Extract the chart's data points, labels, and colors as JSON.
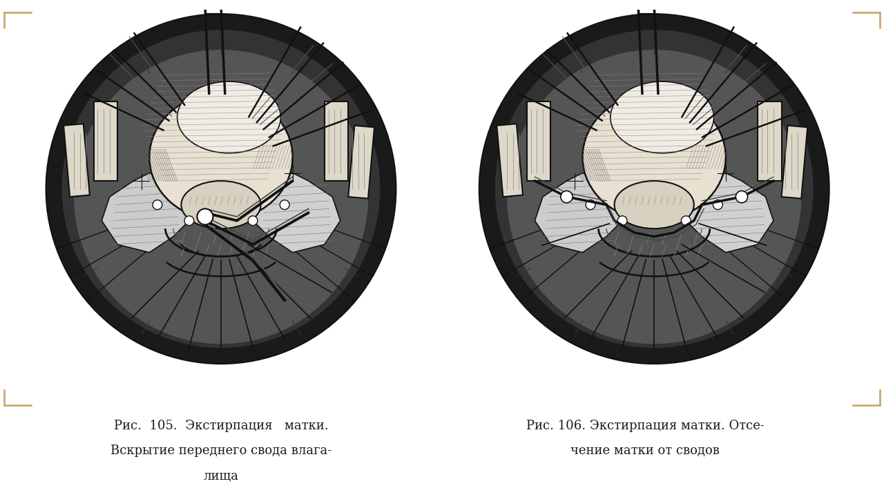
{
  "background_color": "#ffffff",
  "fig_width": 12.8,
  "fig_height": 7.2,
  "caption_left_line1": "Рис.  105.  Экстирпация   матки.",
  "caption_left_line2": "Вскрытие переднего свода влага-",
  "caption_left_line3": "лища",
  "caption_right_line1": "Рис. 106. Экстирпация матки. Отсе-",
  "caption_right_line2": "чение матки от сводов",
  "caption_fontsize": 13.0,
  "caption_color": "#1a1a1a",
  "border_color": "#c8a060",
  "ink": "#111111",
  "light_gray": "#aaaaaa",
  "mid_gray": "#666666",
  "dark_fill": "#222222"
}
